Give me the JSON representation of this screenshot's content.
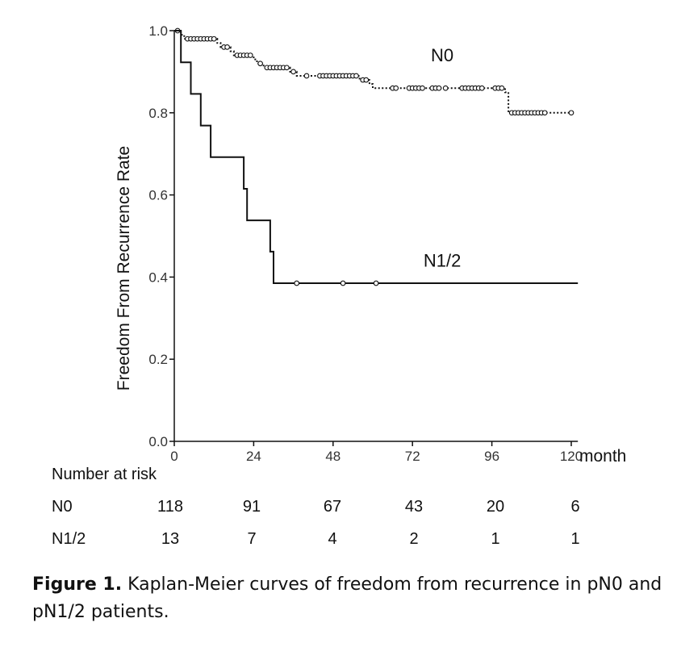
{
  "chart_data": {
    "type": "line",
    "title": "",
    "xlabel": "month",
    "ylabel": "Freedom From Recurrence Rate",
    "xlim": [
      0,
      122
    ],
    "ylim": [
      0,
      1.0
    ],
    "x_ticks": [
      0,
      24,
      48,
      72,
      96,
      120
    ],
    "y_ticks": [
      0.0,
      0.2,
      0.4,
      0.6,
      0.8,
      1.0
    ],
    "x_tick_labels": [
      "0",
      "24",
      "48",
      "72",
      "96",
      "120"
    ],
    "y_tick_labels": [
      "0.0",
      "0.2",
      "0.4",
      "0.6",
      "0.8",
      "1.0"
    ],
    "grid": false,
    "series": [
      {
        "name": "N0",
        "line_style": "dotted",
        "steps": [
          [
            0,
            1.0
          ],
          [
            2,
            0.99
          ],
          [
            3,
            0.98
          ],
          [
            13,
            0.97
          ],
          [
            14,
            0.96
          ],
          [
            17,
            0.95
          ],
          [
            18,
            0.94
          ],
          [
            24,
            0.93
          ],
          [
            25,
            0.92
          ],
          [
            27,
            0.91
          ],
          [
            35,
            0.9
          ],
          [
            37,
            0.89
          ],
          [
            56,
            0.88
          ],
          [
            59,
            0.87
          ],
          [
            60,
            0.86
          ],
          [
            100,
            0.85
          ],
          [
            101,
            0.8
          ]
        ],
        "end_x": 121,
        "censored_times": [
          1,
          4,
          5,
          6,
          7,
          8,
          9,
          10,
          11,
          12,
          15,
          16,
          19,
          20,
          21,
          22,
          23,
          26,
          28,
          29,
          30,
          31,
          32,
          33,
          34,
          36,
          40,
          44,
          45,
          46,
          47,
          48,
          49,
          50,
          51,
          52,
          53,
          54,
          55,
          57,
          58,
          66,
          67,
          71,
          72,
          73,
          74,
          75,
          78,
          79,
          80,
          82,
          87,
          88,
          89,
          90,
          91,
          92,
          93,
          97,
          98,
          99,
          102,
          103,
          104,
          105,
          106,
          107,
          108,
          109,
          110,
          111,
          112,
          120
        ]
      },
      {
        "name": "N1/2",
        "line_style": "solid",
        "steps": [
          [
            0,
            1.0
          ],
          [
            2,
            0.923
          ],
          [
            5,
            0.846
          ],
          [
            8,
            0.769
          ],
          [
            11,
            0.692
          ],
          [
            21,
            0.615
          ],
          [
            22,
            0.538
          ],
          [
            29,
            0.462
          ],
          [
            30,
            0.385
          ]
        ],
        "end_x": 122,
        "censored_times": [
          37,
          51,
          61
        ]
      }
    ],
    "legend": "labels placed next to curves",
    "risk_table": {
      "title": "Number at risk",
      "times": [
        0,
        24,
        48,
        72,
        96,
        120
      ],
      "rows": [
        {
          "label": "N0",
          "values": [
            "118",
            "91",
            "67",
            "43",
            "20",
            "6"
          ]
        },
        {
          "label": "N1/2",
          "values": [
            "13",
            "7",
            "4",
            "2",
            "1",
            "1"
          ]
        }
      ]
    }
  },
  "caption": {
    "label": "Figure 1.",
    "text": " Kaplan-Meier curves of freedom from recurrence in pN0 and pN1/2 patients."
  }
}
